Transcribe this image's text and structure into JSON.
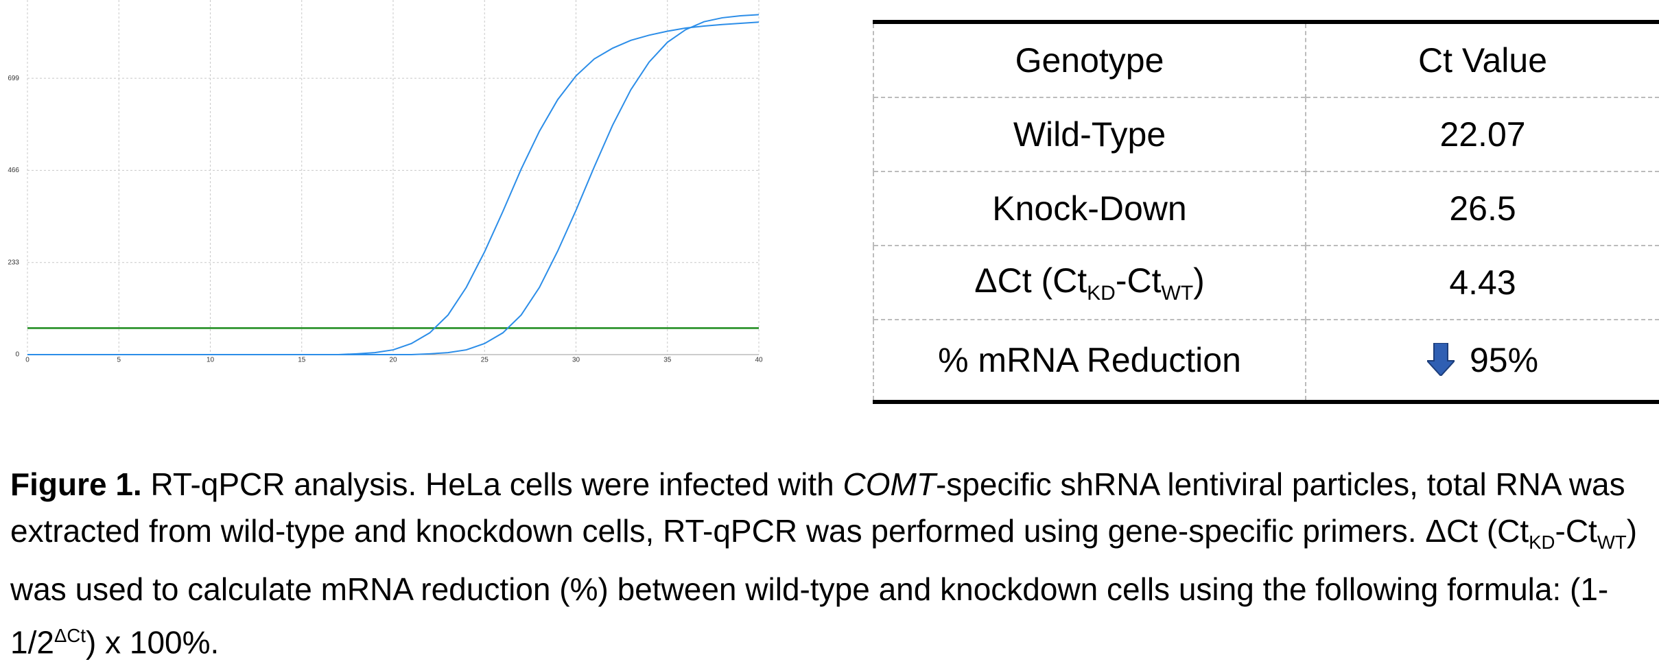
{
  "chart_data": {
    "type": "line",
    "x": [
      0,
      1,
      2,
      3,
      4,
      5,
      6,
      7,
      8,
      9,
      10,
      11,
      12,
      13,
      14,
      15,
      16,
      17,
      18,
      19,
      20,
      21,
      22,
      23,
      24,
      25,
      26,
      27,
      28,
      29,
      30,
      31,
      32,
      33,
      34,
      35,
      36,
      37,
      38,
      39,
      40
    ],
    "series": [
      {
        "color": "#2b8de8",
        "values": [
          0,
          0,
          0,
          0,
          0,
          0,
          0,
          0,
          0,
          0,
          0,
          0,
          0,
          0,
          0,
          0,
          0,
          0,
          2,
          5,
          12,
          28,
          55,
          100,
          170,
          260,
          362,
          469,
          565,
          645,
          705,
          748,
          775,
          795,
          808,
          818,
          826,
          831,
          835,
          838,
          841
        ]
      },
      {
        "color": "#2b8de8",
        "values": [
          0,
          0,
          0,
          0,
          0,
          0,
          0,
          0,
          0,
          0,
          0,
          0,
          0,
          0,
          0,
          0,
          0,
          0,
          0,
          0,
          0,
          0,
          2,
          5,
          12,
          28,
          55,
          100,
          170,
          262,
          365,
          475,
          580,
          670,
          740,
          790,
          822,
          842,
          852,
          857,
          860
        ]
      }
    ],
    "threshold": 67,
    "threshold_color": "#1a8a1a",
    "xlim": [
      0,
      40
    ],
    "xticks": [
      0,
      5,
      10,
      15,
      20,
      25,
      30,
      35,
      40
    ],
    "ylim": [
      0,
      897
    ],
    "yticks": [
      0,
      233,
      466,
      699
    ],
    "grid": true
  },
  "table": {
    "header": [
      "Genotype",
      "Ct Value"
    ],
    "rows": [
      [
        "Wild-Type",
        "22.07"
      ],
      [
        "Knock-Down",
        "26.5"
      ],
      [
        [
          "ΔCt (Ct",
          "KD",
          "-Ct",
          "WT",
          ")"
        ],
        "4.43"
      ],
      [
        "% mRNA Reduction",
        "95%"
      ]
    ]
  },
  "caption": [
    "Figure 1.",
    " RT-qPCR analysis. HeLa cells were infected with ",
    "COMT",
    "-specific shRNA lentiviral particles, total RNA was extracted from wild-type and knockdown cells, RT-qPCR was performed using gene-specific primers. ΔCt (Ct",
    "KD",
    "-Ct",
    "WT",
    ") was used to calculate mRNA reduction (%) between wild-type and knockdown cells using the following formula: (1-1/2",
    "ΔCt",
    ") x 100%."
  ]
}
